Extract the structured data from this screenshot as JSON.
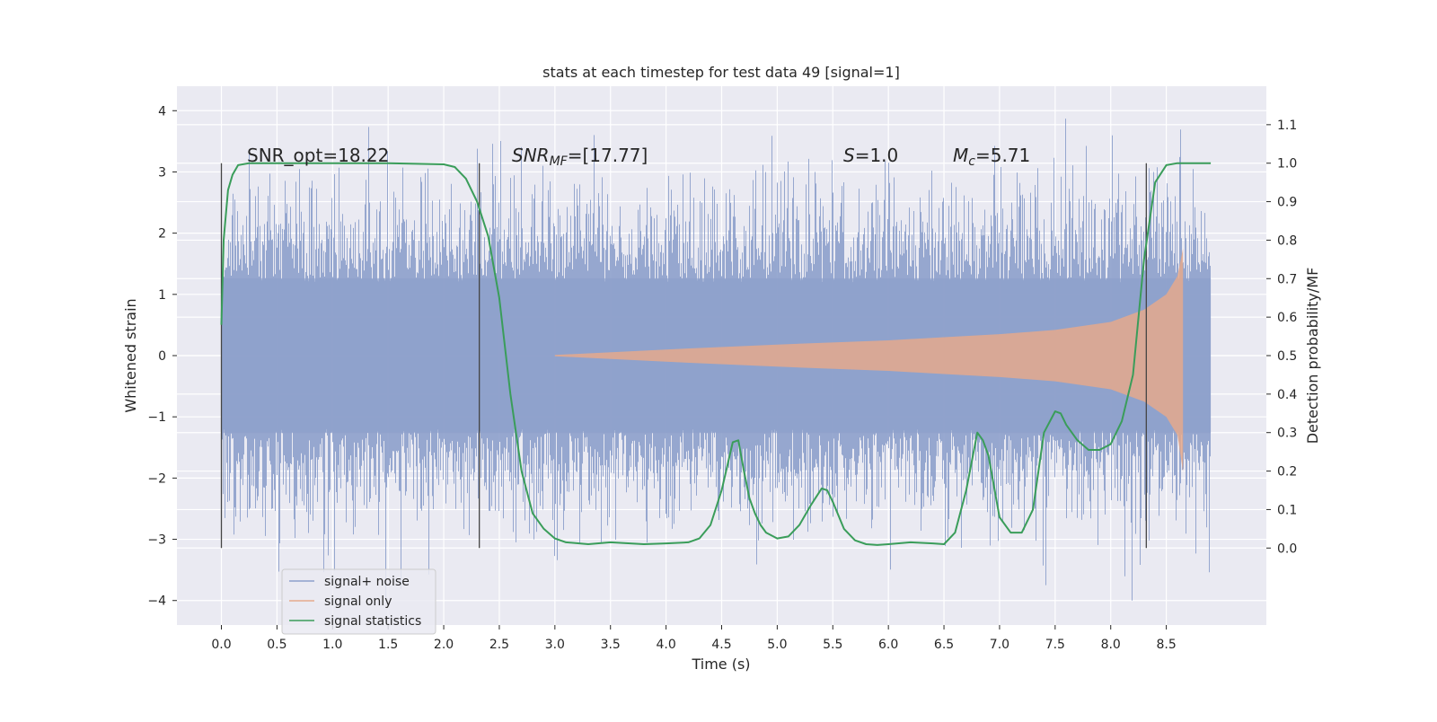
{
  "chart_data": {
    "type": "line",
    "title": "stats at each timestep for test data 49 [signal=1]",
    "xlabel": "Time (s)",
    "ylabel_left": "Whitened strain",
    "ylabel_right": "Detection probability/MF",
    "xlim": [
      -0.4,
      9.4
    ],
    "ylim_left": [
      -4.4,
      4.4
    ],
    "ylim_right": [
      -0.2,
      1.2
    ],
    "x_ticks": [
      "0.0",
      "0.5",
      "1.0",
      "1.5",
      "2.0",
      "2.5",
      "3.0",
      "3.5",
      "4.0",
      "4.5",
      "5.0",
      "5.5",
      "6.0",
      "6.5",
      "7.0",
      "7.5",
      "8.0",
      "8.5"
    ],
    "y_ticks_left": [
      "4",
      "3",
      "2",
      "1",
      "0",
      "−1",
      "−2",
      "−3",
      "−4"
    ],
    "y_ticks_right": [
      "1.1",
      "1.0",
      "0.9",
      "0.8",
      "0.7",
      "0.6",
      "0.5",
      "0.4",
      "0.3",
      "0.2",
      "0.1",
      "0.0"
    ],
    "grid": true,
    "legend": {
      "placement": "lower-left",
      "entries": [
        {
          "label": "signal+ noise",
          "color": "#8da0cb"
        },
        {
          "label": "signal only",
          "color": "#e5a98c"
        },
        {
          "label": "signal statistics",
          "color": "#3a9d5a"
        }
      ]
    },
    "annotations": {
      "snr_opt": {
        "prefix": "SNR_opt=",
        "value": "18.22"
      },
      "snr_mf": {
        "label": "SNR",
        "subscript": "MF",
        "value": "=[17.77]"
      },
      "s": {
        "label": "S",
        "value": "=1.0"
      },
      "mc": {
        "label": "M",
        "subscript": "c",
        "value": "=5.71"
      }
    },
    "vertical_markers_x": [
      0.0,
      2.32,
      8.32
    ],
    "series": [
      {
        "name": "signal+ noise",
        "axis": "left",
        "color": "#8da0cb",
        "x_range": [
          0.0,
          8.9
        ],
        "envelope_upper": 2.3,
        "envelope_lower": -2.3,
        "peak_max": 4.0,
        "peak_min": -4.0
      },
      {
        "name": "signal only",
        "axis": "left",
        "color": "#e5a98c",
        "x_range": [
          3.0,
          8.65
        ],
        "envelope": [
          [
            3.0,
            0.01
          ],
          [
            4.0,
            0.1
          ],
          [
            5.0,
            0.18
          ],
          [
            6.0,
            0.25
          ],
          [
            6.5,
            0.3
          ],
          [
            7.0,
            0.35
          ],
          [
            7.5,
            0.42
          ],
          [
            8.0,
            0.55
          ],
          [
            8.3,
            0.75
          ],
          [
            8.5,
            1.0
          ],
          [
            8.6,
            1.3
          ],
          [
            8.65,
            1.75
          ]
        ]
      },
      {
        "name": "signal statistics",
        "axis": "right",
        "color": "#3a9d5a",
        "x": [
          0.0,
          0.02,
          0.06,
          0.1,
          0.15,
          0.25,
          0.4,
          1.0,
          1.5,
          2.0,
          2.1,
          2.2,
          2.3,
          2.4,
          2.5,
          2.6,
          2.7,
          2.8,
          2.9,
          3.0,
          3.1,
          3.3,
          3.5,
          3.8,
          4.0,
          4.2,
          4.3,
          4.4,
          4.5,
          4.6,
          4.65,
          4.7,
          4.75,
          4.8,
          4.85,
          4.9,
          5.0,
          5.1,
          5.2,
          5.3,
          5.4,
          5.45,
          5.5,
          5.6,
          5.7,
          5.8,
          5.9,
          6.0,
          6.2,
          6.4,
          6.5,
          6.6,
          6.7,
          6.8,
          6.85,
          6.9,
          7.0,
          7.1,
          7.2,
          7.3,
          7.4,
          7.5,
          7.55,
          7.6,
          7.7,
          7.8,
          7.9,
          8.0,
          8.1,
          8.2,
          8.3,
          8.4,
          8.5,
          8.6,
          8.9
        ],
        "y": [
          0.58,
          0.8,
          0.93,
          0.97,
          0.995,
          1.0,
          1.0,
          1.0,
          1.0,
          0.997,
          0.99,
          0.96,
          0.9,
          0.81,
          0.65,
          0.4,
          0.2,
          0.09,
          0.05,
          0.025,
          0.015,
          0.01,
          0.015,
          0.01,
          0.012,
          0.015,
          0.025,
          0.06,
          0.15,
          0.275,
          0.28,
          0.2,
          0.13,
          0.09,
          0.06,
          0.04,
          0.025,
          0.03,
          0.06,
          0.11,
          0.155,
          0.15,
          0.12,
          0.05,
          0.02,
          0.01,
          0.008,
          0.01,
          0.015,
          0.012,
          0.01,
          0.04,
          0.15,
          0.3,
          0.28,
          0.24,
          0.08,
          0.04,
          0.04,
          0.1,
          0.3,
          0.355,
          0.35,
          0.32,
          0.28,
          0.255,
          0.255,
          0.27,
          0.33,
          0.45,
          0.75,
          0.95,
          0.995,
          1.0,
          1.0
        ]
      }
    ]
  }
}
